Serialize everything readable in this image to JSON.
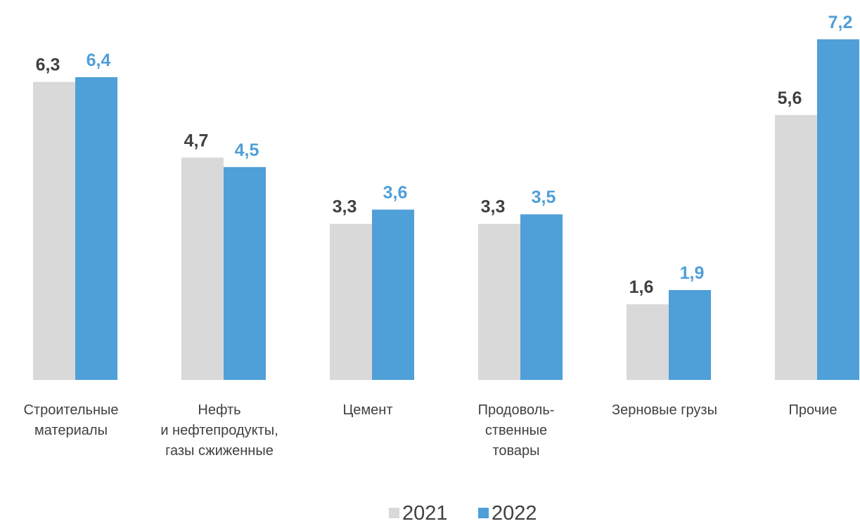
{
  "chart_data": {
    "type": "bar",
    "categories": [
      [
        "Строительные",
        "материалы"
      ],
      [
        "Нефть",
        "и нефтепродукты,",
        "газы сжиженные"
      ],
      [
        "Цемент"
      ],
      [
        "Продоволь-",
        "ственные",
        "товары"
      ],
      [
        "Зерновые грузы"
      ],
      [
        "Прочие"
      ]
    ],
    "series": [
      {
        "name": "2021",
        "values": [
          6.3,
          4.7,
          3.3,
          3.3,
          1.6,
          5.6
        ],
        "labels": [
          "6,3",
          "4,7",
          "3,3",
          "3,3",
          "1,6",
          "5,6"
        ],
        "color": "#D9D9D9",
        "label_color": "#404040"
      },
      {
        "name": "2022",
        "values": [
          6.4,
          4.5,
          3.6,
          3.5,
          1.9,
          7.2
        ],
        "labels": [
          "6,4",
          "4,5",
          "3,6",
          "3,5",
          "1,9",
          "7,2"
        ],
        "color": "#4F9FD8",
        "label_color": "#4F9FD8"
      }
    ],
    "ylim": [
      0,
      7.2
    ],
    "grid": false,
    "legend_position": "bottom"
  }
}
